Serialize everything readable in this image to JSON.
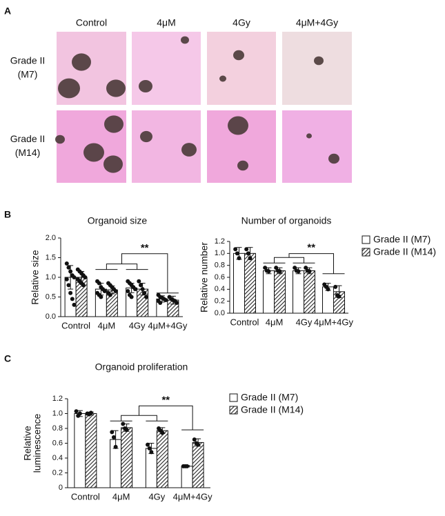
{
  "panel_labels": [
    "A",
    "B",
    "C"
  ],
  "images": {
    "columns": [
      "Control",
      "4μM",
      "4Gy",
      "4μM+4Gy"
    ],
    "rows": [
      [
        "Grade II",
        "(M7)"
      ],
      [
        "Grade II",
        "(M14)"
      ]
    ]
  },
  "chart_data": [
    {
      "type": "bar",
      "title": "Organoid size",
      "y_label": [
        "Relative size"
      ],
      "categories": [
        "Control",
        "4μM",
        "4Gy",
        "4μM+4Gy"
      ],
      "series": [
        {
          "name": "Grade II (M7)",
          "color": "#ffffff",
          "pattern": "none",
          "values": [
            1.0,
            0.7,
            0.73,
            0.45
          ],
          "errors": [
            0.3,
            0.15,
            0.12,
            0.08
          ],
          "points": [
            [
              1.35,
              1.25,
              1.15,
              1.05,
              1.0,
              0.95,
              0.8,
              0.6,
              0.45,
              0.3
            ],
            [
              0.9,
              0.85,
              0.75,
              0.7,
              0.65,
              0.6,
              0.55,
              0.5
            ],
            [
              0.9,
              0.85,
              0.8,
              0.75,
              0.7,
              0.65,
              0.55,
              0.5
            ],
            [
              0.55,
              0.5,
              0.48,
              0.45,
              0.42,
              0.4,
              0.35
            ]
          ]
        },
        {
          "name": "Grade II (M14)",
          "color": "#444444",
          "pattern": "hatch",
          "values": [
            1.0,
            0.68,
            0.7,
            0.42
          ],
          "errors": [
            0.15,
            0.1,
            0.15,
            0.1
          ],
          "points": [
            [
              1.2,
              1.15,
              1.1,
              1.05,
              1.0,
              0.95,
              0.9,
              0.85,
              0.8
            ],
            [
              0.85,
              0.8,
              0.75,
              0.7,
              0.65,
              0.6,
              0.55
            ],
            [
              0.9,
              0.8,
              0.7,
              0.6,
              0.5
            ],
            [
              0.5,
              0.45,
              0.42,
              0.4,
              0.35
            ]
          ]
        }
      ],
      "ylim": [
        0,
        2.0
      ],
      "yticks": [
        {
          "value": 0,
          "label": "0.0"
        },
        {
          "value": 0.5,
          "label": "0.5"
        },
        {
          "value": 1.0,
          "label": "1.0"
        },
        {
          "value": 1.5,
          "label": "1.5"
        },
        {
          "value": 2.0,
          "label": "2.0"
        }
      ],
      "significance": "**",
      "legend": false
    },
    {
      "type": "bar",
      "title": "Number of organoids",
      "y_label": [
        "Relative number"
      ],
      "categories": [
        "Control",
        "4μM",
        "4Gy",
        "4μM+4Gy"
      ],
      "series": [
        {
          "name": "Grade II (M7)",
          "color": "#ffffff",
          "pattern": "none",
          "values": [
            1.0,
            0.71,
            0.71,
            0.44
          ],
          "errors": [
            0.1,
            0.05,
            0.05,
            0.06
          ],
          "points": [
            [
              1.07,
              1.0,
              0.92
            ],
            [
              0.76,
              0.71,
              0.7
            ],
            [
              0.76,
              0.71,
              0.7
            ],
            [
              0.48,
              0.44,
              0.4
            ]
          ]
        },
        {
          "name": "Grade II (M14)",
          "color": "#444444",
          "pattern": "hatch",
          "values": [
            1.0,
            0.71,
            0.71,
            0.36
          ],
          "errors": [
            0.1,
            0.05,
            0.05,
            0.1
          ],
          "points": [
            [
              1.07,
              1.0,
              0.92
            ],
            [
              0.76,
              0.71,
              0.7
            ],
            [
              0.76,
              0.71,
              0.7
            ],
            [
              0.44,
              0.3,
              0.28
            ]
          ]
        }
      ],
      "ylim": [
        0,
        1.2
      ],
      "yticks": [
        {
          "value": 0,
          "label": "0.0"
        },
        {
          "value": 0.2,
          "label": "0.2"
        },
        {
          "value": 0.4,
          "label": "0.4"
        },
        {
          "value": 0.6,
          "label": "0.6"
        },
        {
          "value": 0.8,
          "label": "0.8"
        },
        {
          "value": 1.0,
          "label": "1.0"
        },
        {
          "value": 1.2,
          "label": "1.2"
        }
      ],
      "significance": "**",
      "legend": true
    },
    {
      "type": "bar",
      "title": "Organoid proliferation",
      "y_label": [
        "Relative",
        "luminescence"
      ],
      "categories": [
        "Control",
        "4μM",
        "4Gy",
        "4μM+4Gy"
      ],
      "series": [
        {
          "name": "Grade II (M7)",
          "color": "#ffffff",
          "pattern": "none",
          "values": [
            1.0,
            0.65,
            0.53,
            0.29
          ],
          "errors": [
            0.04,
            0.12,
            0.07,
            0.01
          ],
          "points": [
            [
              1.03,
              0.97,
              1.0
            ],
            [
              0.75,
              0.68,
              0.55
            ],
            [
              0.58,
              0.53,
              0.48
            ],
            [
              0.29,
              0.29,
              0.29
            ]
          ]
        },
        {
          "name": "Grade II (M14)",
          "color": "#444444",
          "pattern": "hatch",
          "values": [
            1.0,
            0.81,
            0.77,
            0.61
          ],
          "errors": [
            0.02,
            0.05,
            0.04,
            0.05
          ],
          "points": [
            [
              1.0,
              0.99,
              1.01
            ],
            [
              0.86,
              0.8,
              0.78
            ],
            [
              0.8,
              0.77,
              0.74
            ],
            [
              0.65,
              0.6,
              0.58
            ]
          ]
        }
      ],
      "ylim": [
        0,
        1.2
      ],
      "yticks": [
        {
          "value": 0,
          "label": "0"
        },
        {
          "value": 0.2,
          "label": "0.2"
        },
        {
          "value": 0.4,
          "label": "0.4"
        },
        {
          "value": 0.6,
          "label": "0.6"
        },
        {
          "value": 0.8,
          "label": "0.8"
        },
        {
          "value": 1.0,
          "label": "1.0"
        },
        {
          "value": 1.2,
          "label": "1.2"
        }
      ],
      "significance": "**",
      "legend": true
    }
  ]
}
